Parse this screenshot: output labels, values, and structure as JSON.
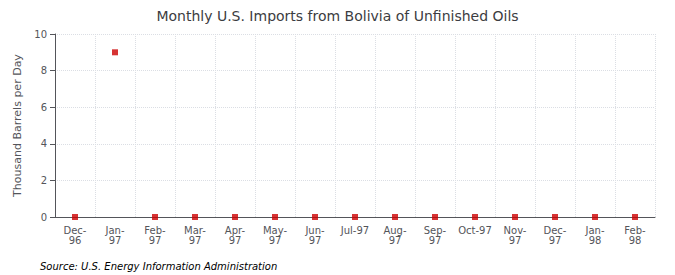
{
  "chart_data": {
    "type": "scatter",
    "title": "Monthly U.S. Imports from Bolivia of Unfinished Oils",
    "ylabel": "Thousand Barrels per Day",
    "annotations": [
      "Source: U.S. Energy Information Administration"
    ],
    "categories": [
      "Dec-\n96",
      "Jan-\n97",
      "Feb-\n97",
      "Mar-\n97",
      "Apr-\n97",
      "May-\n97",
      "Jun-\n97",
      "Jul-97",
      "Aug-\n97",
      "Sep-\n97",
      "Oct-97",
      "Nov-\n97",
      "Dec-\n97",
      "Jan-\n98",
      "Feb-\n98"
    ],
    "values": [
      0,
      9,
      0,
      0,
      0,
      0,
      0,
      0,
      0,
      0,
      0,
      0,
      0,
      0,
      0
    ],
    "color": "#cc0000",
    "marker": "square",
    "ylim": [
      0,
      10
    ],
    "yticks": [
      0,
      2,
      4,
      6,
      8,
      10
    ],
    "grid": true
  }
}
